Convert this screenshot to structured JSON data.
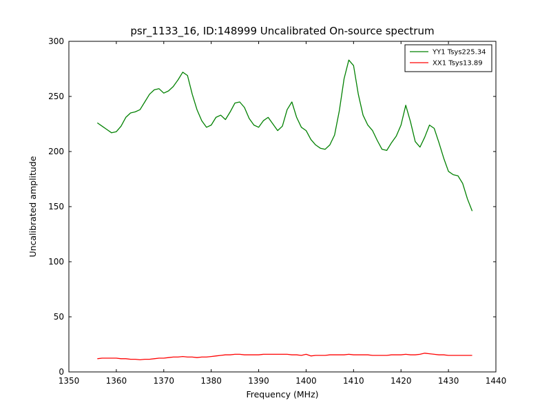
{
  "chart_data": {
    "type": "line",
    "title": "psr_1133_16, ID:148999 Uncalibrated On-source spectrum",
    "xlabel": "Frequency (MHz)",
    "ylabel": "Uncalibrated amplitude",
    "xlim": [
      1350,
      1440
    ],
    "ylim": [
      0,
      300
    ],
    "xticks": [
      1350,
      1360,
      1370,
      1380,
      1390,
      1400,
      1410,
      1420,
      1430,
      1440
    ],
    "yticks": [
      0,
      50,
      100,
      150,
      200,
      250,
      300
    ],
    "grid": false,
    "legend_position": "upper right",
    "x": [
      1356,
      1357,
      1358,
      1359,
      1360,
      1361,
      1362,
      1363,
      1364,
      1365,
      1366,
      1367,
      1368,
      1369,
      1370,
      1371,
      1372,
      1373,
      1374,
      1375,
      1376,
      1377,
      1378,
      1379,
      1380,
      1381,
      1382,
      1383,
      1384,
      1385,
      1386,
      1387,
      1388,
      1389,
      1390,
      1391,
      1392,
      1393,
      1394,
      1395,
      1396,
      1397,
      1398,
      1399,
      1400,
      1401,
      1402,
      1403,
      1404,
      1405,
      1406,
      1407,
      1408,
      1409,
      1410,
      1411,
      1412,
      1413,
      1414,
      1415,
      1416,
      1417,
      1418,
      1419,
      1420,
      1421,
      1422,
      1423,
      1424,
      1425,
      1426,
      1427,
      1428,
      1429,
      1430,
      1431,
      1432,
      1433,
      1434,
      1435
    ],
    "series": [
      {
        "name": "YY1 Tsys225.34",
        "color": "#008000",
        "values": [
          226,
          223,
          220,
          217,
          218,
          223,
          231,
          235,
          236,
          238,
          245,
          252,
          256,
          257,
          253,
          255,
          259,
          265,
          272,
          269,
          252,
          238,
          228,
          222,
          224,
          231,
          233,
          229,
          236,
          244,
          245,
          240,
          230,
          224,
          222,
          228,
          231,
          225,
          219,
          223,
          238,
          245,
          231,
          222,
          219,
          211,
          206,
          203,
          202,
          206,
          215,
          237,
          266,
          283,
          278,
          252,
          233,
          224,
          219,
          210,
          202,
          201,
          208,
          214,
          224,
          242,
          227,
          209,
          204,
          213,
          224,
          221,
          208,
          194,
          182,
          179,
          178,
          171,
          157,
          146
        ]
      },
      {
        "name": "XX1 Tsys13.89",
        "color": "#ff0000",
        "values": [
          12,
          12.5,
          12.5,
          12.5,
          12.5,
          12,
          12,
          11.5,
          11.5,
          11,
          11.5,
          11.5,
          12,
          12.5,
          12.5,
          13,
          13.5,
          13.5,
          14,
          13.5,
          13.5,
          13,
          13.5,
          13.5,
          14,
          14.5,
          15,
          15.5,
          15.5,
          16,
          16,
          15.5,
          15.5,
          15.5,
          15.5,
          16,
          16,
          16,
          16,
          16,
          16,
          15.5,
          15.5,
          15,
          16,
          14.5,
          15,
          15,
          15,
          15.5,
          15.5,
          15.5,
          15.5,
          16,
          15.5,
          15.5,
          15.5,
          15.5,
          15,
          15,
          15,
          15,
          15.5,
          15.5,
          15.5,
          16,
          15.5,
          15.5,
          16,
          17,
          16.5,
          16,
          15.5,
          15.5,
          15,
          15,
          15,
          15,
          15,
          15
        ]
      }
    ]
  }
}
